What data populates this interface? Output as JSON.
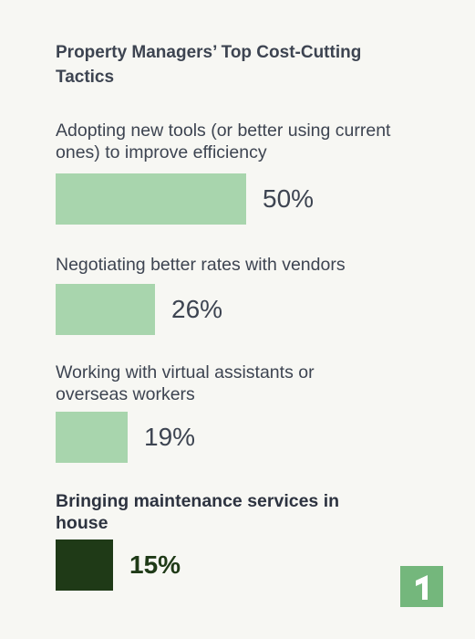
{
  "chart_data": {
    "type": "bar",
    "orientation": "horizontal",
    "title": "Property Managers’ Top Cost-Cutting Tactics",
    "categories": [
      "Adopting new tools (or better using current ones) to improve efficiency",
      "Negotiating better rates with vendors",
      "Working with virtual assistants or overseas workers",
      "Bringing maintenance services in house"
    ],
    "values": [
      50,
      26,
      19,
      15
    ],
    "value_labels": [
      "50%",
      "26%",
      "19%",
      "15%"
    ],
    "highlighted": [
      false,
      false,
      false,
      true
    ],
    "xlim": [
      0,
      100
    ],
    "colors": {
      "bar": "#a8d5ad",
      "highlight_bar": "#1f3a17",
      "highlight_text": "#1f3a17",
      "text": "#3d4451",
      "background": "#f7f7f3",
      "logo": "#74b77c"
    }
  },
  "logo": {
    "icon": "brand-logo-icon"
  }
}
